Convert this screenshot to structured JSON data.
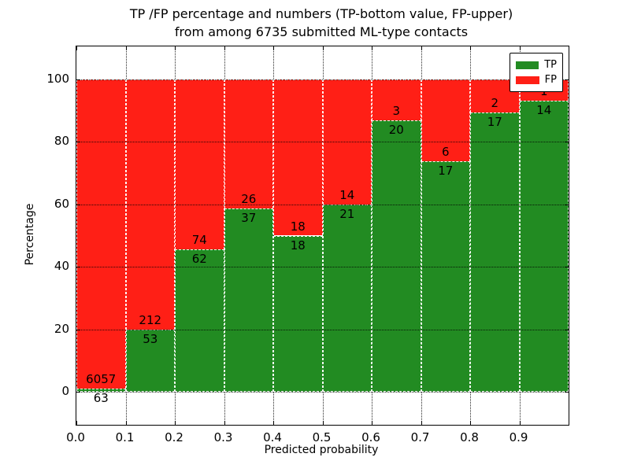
{
  "title": {
    "line1": "TP /FP percentage and numbers (TP-bottom value, FP-upper)",
    "line2": "from among 6735 submitted ML-type contacts"
  },
  "colors": {
    "tp_green": "#228B22",
    "fp_red": "#ff1f16",
    "axis_black": "#000000",
    "background": "#ffffff"
  },
  "chart_data": {
    "type": "bar",
    "stacked": true,
    "title": "TP /FP percentage and numbers (TP-bottom value, FP-upper) from among 6735 submitted ML-type contacts",
    "xlabel": "Predicted probability",
    "ylabel": "Percentage",
    "total_contacts": 6735,
    "xlim": [
      0.0,
      1.0
    ],
    "ylim": [
      -10.6,
      110.6
    ],
    "x_tick_labels": [
      "0.0",
      "0.1",
      "0.2",
      "0.3",
      "0.4",
      "0.5",
      "0.6",
      "0.7",
      "0.8",
      "0.9"
    ],
    "x_tick_values": [
      0.0,
      0.1,
      0.2,
      0.3,
      0.4,
      0.5,
      0.6,
      0.7,
      0.8,
      0.9
    ],
    "y_ticks": [
      0,
      20,
      40,
      60,
      80,
      100
    ],
    "grid": "dotted",
    "bar_width": 0.1,
    "legend": {
      "position": "upper-right",
      "entries": [
        {
          "label": "TP",
          "color": "#228B22"
        },
        {
          "label": "FP",
          "color": "#ff1f16"
        }
      ]
    },
    "series_note": "green TP percentage bottom, red FP percentage stacked to 100%; labels show raw counts (TP bottom value, FP upper)",
    "bins": [
      {
        "range": [
          0.0,
          0.1
        ],
        "tp": 63,
        "fp": 6057,
        "tp_pct": 1.03
      },
      {
        "range": [
          0.1,
          0.2
        ],
        "tp": 53,
        "fp": 212,
        "tp_pct": 20.0
      },
      {
        "range": [
          0.2,
          0.3
        ],
        "tp": 62,
        "fp": 74,
        "tp_pct": 45.59
      },
      {
        "range": [
          0.3,
          0.4
        ],
        "tp": 37,
        "fp": 26,
        "tp_pct": 58.73
      },
      {
        "range": [
          0.4,
          0.5
        ],
        "tp": 18,
        "fp": 18,
        "tp_pct": 50.0
      },
      {
        "range": [
          0.5,
          0.6
        ],
        "tp": 21,
        "fp": 14,
        "tp_pct": 60.0
      },
      {
        "range": [
          0.6,
          0.7
        ],
        "tp": 20,
        "fp": 3,
        "tp_pct": 86.96
      },
      {
        "range": [
          0.7,
          0.8
        ],
        "tp": 17,
        "fp": 6,
        "tp_pct": 73.91
      },
      {
        "range": [
          0.8,
          0.9
        ],
        "tp": 17,
        "fp": 2,
        "tp_pct": 89.47
      },
      {
        "range": [
          0.9,
          1.0
        ],
        "tp": 14,
        "fp": 1,
        "tp_pct": 93.33
      }
    ]
  }
}
